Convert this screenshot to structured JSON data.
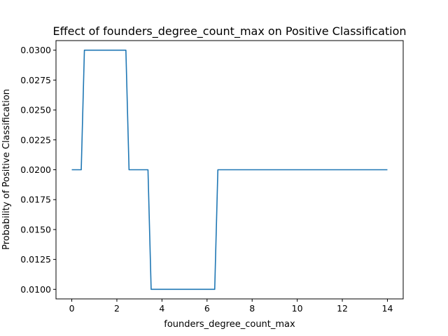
{
  "chart_data": {
    "type": "line",
    "title": "Effect of founders_degree_count_max on Positive Classification",
    "xlabel": "founders_degree_count_max",
    "ylabel": "Probability of Positive Classification",
    "xlim": [
      -0.7,
      14.7
    ],
    "ylim": [
      0.0092,
      0.0308
    ],
    "xticks": [
      0,
      2,
      4,
      6,
      8,
      10,
      12,
      14
    ],
    "xtick_labels": [
      "0",
      "2",
      "4",
      "6",
      "8",
      "10",
      "12",
      "14"
    ],
    "yticks": [
      0.01,
      0.0125,
      0.015,
      0.0175,
      0.02,
      0.0225,
      0.025,
      0.0275,
      0.03
    ],
    "ytick_labels": [
      "0.0100",
      "0.0125",
      "0.0150",
      "0.0175",
      "0.0200",
      "0.0225",
      "0.0250",
      "0.0275",
      "0.0300"
    ],
    "grid": false,
    "series": [
      {
        "color": "#1f77b4",
        "x": [
          0,
          0.42,
          0.56,
          2.4,
          2.54,
          3.38,
          3.52,
          6.34,
          6.48,
          14
        ],
        "y": [
          0.02,
          0.02,
          0.03,
          0.03,
          0.02,
          0.02,
          0.01,
          0.01,
          0.02,
          0.02
        ]
      }
    ]
  }
}
